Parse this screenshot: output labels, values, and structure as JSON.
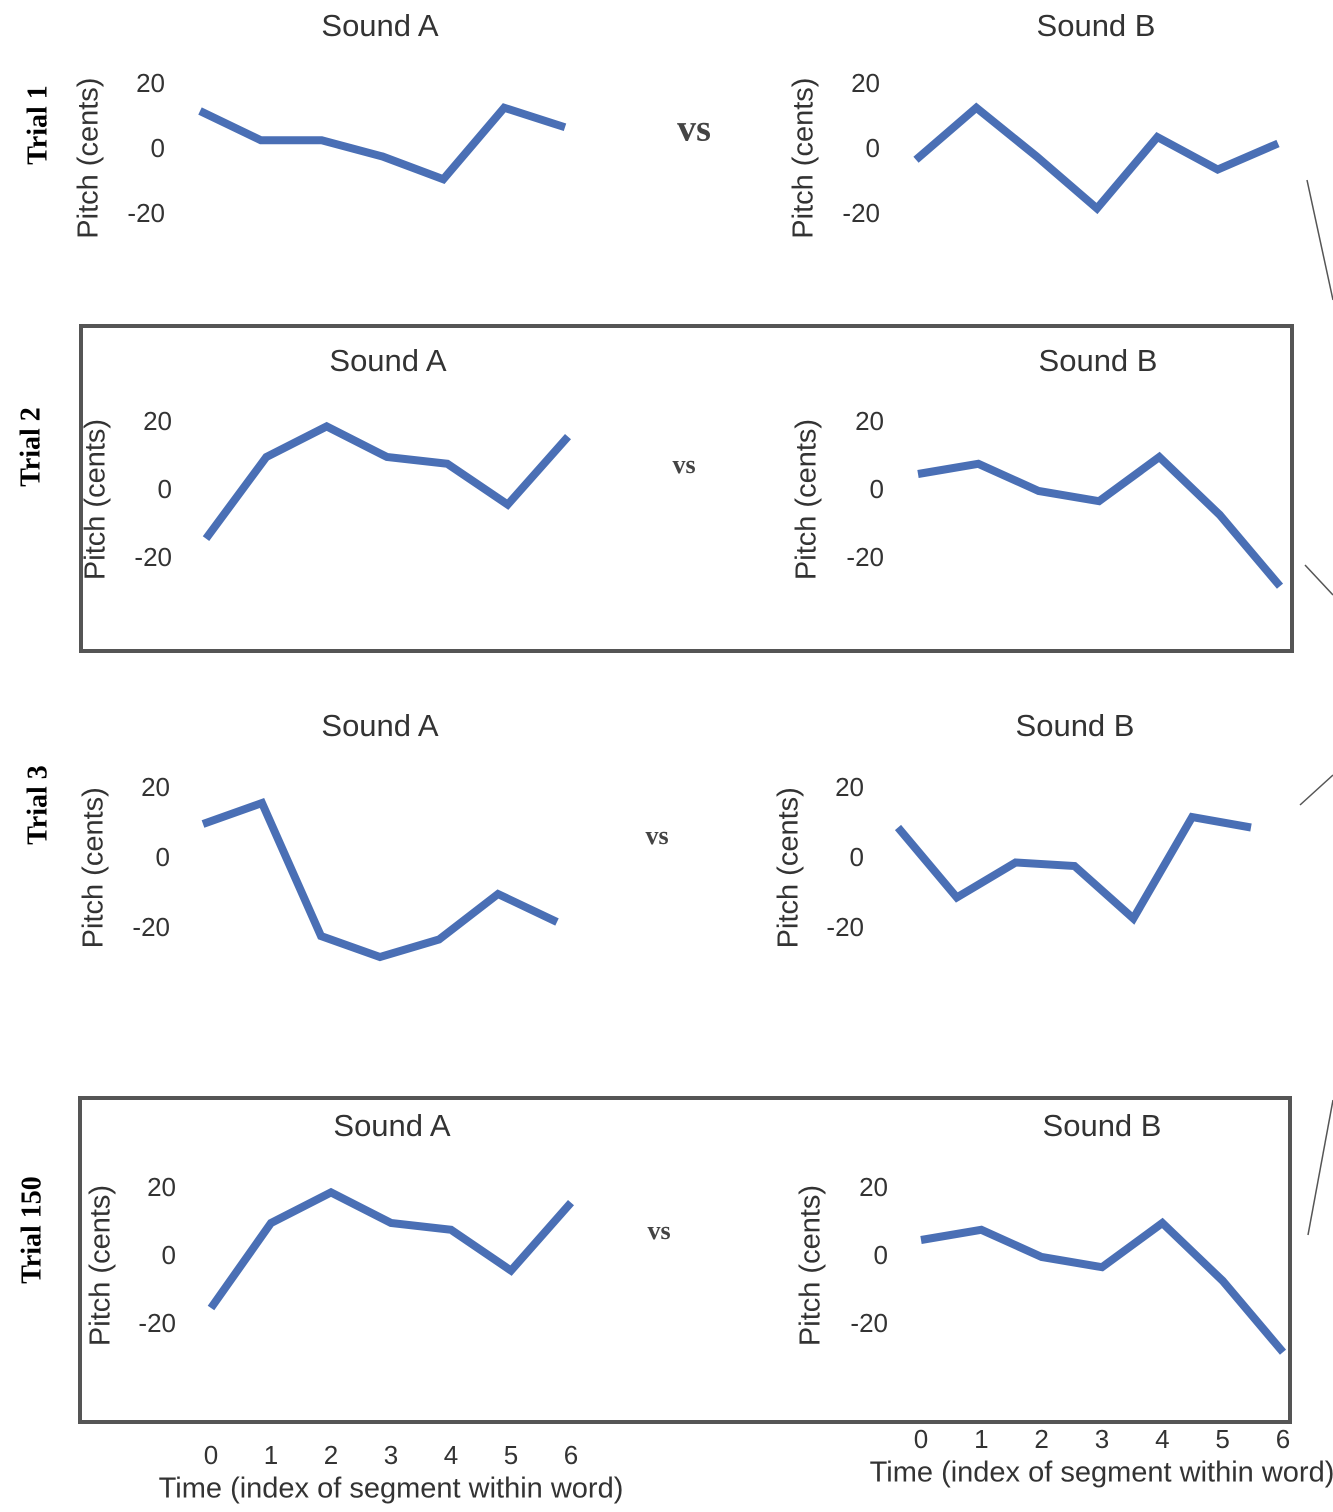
{
  "trials": [
    {
      "label": "Trial 1",
      "vs": "vs"
    },
    {
      "label": "Trial 2",
      "vs": "vs"
    },
    {
      "label": "Trial 3",
      "vs": "vs"
    },
    {
      "label": "Trial 150",
      "vs": "vs"
    }
  ],
  "chart_data": [
    {
      "type": "line",
      "title": "Sound A",
      "ylabel": "Pitch (cents)",
      "x": [
        0,
        1,
        2,
        3,
        4,
        5,
        6
      ],
      "values": [
        12,
        3,
        3,
        -2,
        -9,
        13,
        7
      ],
      "color": "#4a6fb5",
      "ylim": [
        -30,
        25
      ],
      "yticks": [
        -20,
        0,
        20
      ]
    },
    {
      "type": "line",
      "title": "Sound B",
      "ylabel": "Pitch (cents)",
      "x": [
        0,
        1,
        2,
        3,
        4,
        5,
        6
      ],
      "values": [
        -3,
        13,
        -2,
        -18,
        4,
        -6,
        2
      ],
      "color": "#4a6fb5",
      "ylim": [
        -30,
        25
      ],
      "yticks": [
        -20,
        0,
        20
      ]
    },
    {
      "type": "line",
      "title": "Sound A",
      "ylabel": "Pitch (cents)",
      "x": [
        0,
        1,
        2,
        3,
        4,
        5,
        6
      ],
      "values": [
        -14,
        10,
        19,
        10,
        8,
        -4,
        16
      ],
      "color": "#4a6fb5",
      "ylim": [
        -30,
        25
      ],
      "yticks": [
        -20,
        0,
        20
      ]
    },
    {
      "type": "line",
      "title": "Sound B",
      "ylabel": "Pitch (cents)",
      "x": [
        0,
        1,
        2,
        3,
        4,
        5,
        6
      ],
      "values": [
        5,
        8,
        0,
        -3,
        10,
        -7,
        -28
      ],
      "color": "#4a6fb5",
      "ylim": [
        -30,
        25
      ],
      "yticks": [
        -20,
        0,
        20
      ]
    },
    {
      "type": "line",
      "title": "Sound A",
      "ylabel": "Pitch (cents)",
      "x": [
        0,
        1,
        2,
        3,
        4,
        5,
        6
      ],
      "values": [
        10,
        16,
        -22,
        -28,
        -23,
        -10,
        -18
      ],
      "color": "#4a6fb5",
      "ylim": [
        -30,
        25
      ],
      "yticks": [
        -20,
        0,
        20
      ]
    },
    {
      "type": "line",
      "title": "Sound B",
      "ylabel": "Pitch (cents)",
      "x": [
        0,
        1,
        2,
        3,
        4,
        5,
        6
      ],
      "values": [
        9,
        -11,
        -1,
        -2,
        -17,
        12,
        9
      ],
      "color": "#4a6fb5",
      "ylim": [
        -30,
        25
      ],
      "yticks": [
        -20,
        0,
        20
      ]
    },
    {
      "type": "line",
      "title": "Sound A",
      "ylabel": "Pitch (cents)",
      "xlabel": "Time (index of segment within word)",
      "x": [
        0,
        1,
        2,
        3,
        4,
        5,
        6
      ],
      "values": [
        -15,
        10,
        19,
        10,
        8,
        -4,
        16
      ],
      "color": "#4a6fb5",
      "xlim": [
        0,
        6
      ],
      "xticks": [
        0,
        1,
        2,
        3,
        4,
        5,
        6
      ],
      "ylim": [
        -30,
        25
      ],
      "yticks": [
        -20,
        0,
        20
      ]
    },
    {
      "type": "line",
      "title": "Sound B",
      "ylabel": "Pitch (cents)",
      "xlabel": "Time (index of segment within word)",
      "x": [
        0,
        1,
        2,
        3,
        4,
        5,
        6
      ],
      "values": [
        5,
        8,
        0,
        -3,
        10,
        -7,
        -28
      ],
      "color": "#4a6fb5",
      "xlim": [
        0,
        6
      ],
      "xticks": [
        0,
        1,
        2,
        3,
        4,
        5,
        6
      ],
      "ylim": [
        -30,
        25
      ],
      "yticks": [
        -20,
        0,
        20
      ]
    }
  ]
}
